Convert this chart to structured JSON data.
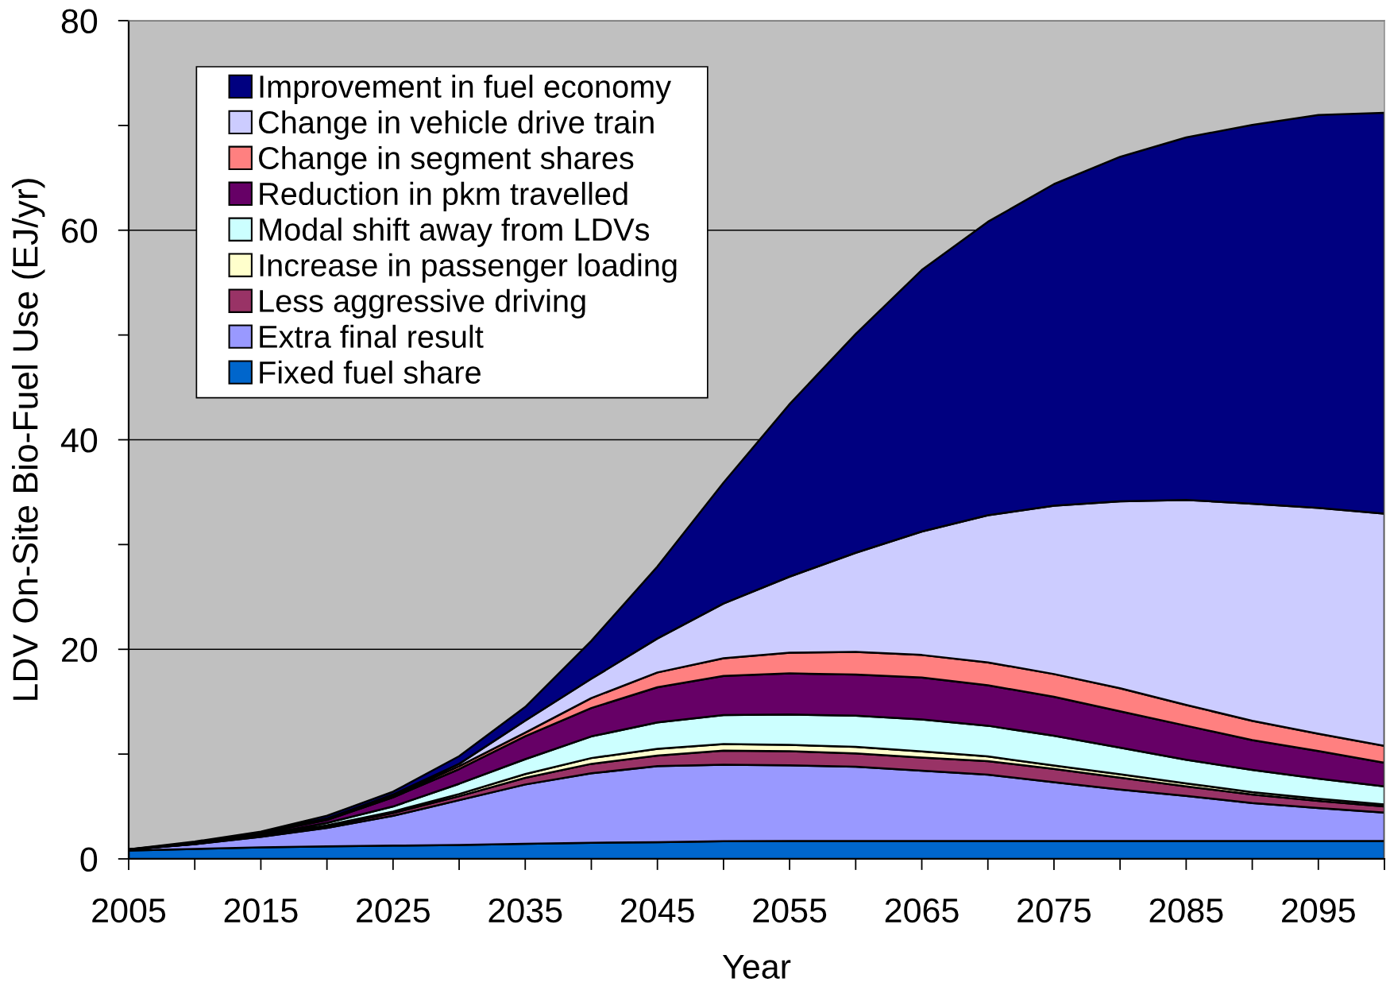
{
  "chart_data": {
    "type": "area",
    "stacked": true,
    "xlabel": "Year",
    "ylabel": "LDV On-Site Bio-Fuel Use (EJ/yr)",
    "x": [
      2005,
      2010,
      2015,
      2020,
      2025,
      2030,
      2035,
      2040,
      2045,
      2050,
      2055,
      2060,
      2065,
      2070,
      2075,
      2080,
      2085,
      2090,
      2095,
      2100
    ],
    "xlim": [
      2005,
      2100
    ],
    "xticks": [
      2005,
      {
        "value": 2010,
        "label": null
      },
      2015,
      {
        "value": 2020,
        "label": null
      },
      2025,
      {
        "value": 2030,
        "label": null
      },
      2035,
      {
        "value": 2040,
        "label": null
      },
      2045,
      {
        "value": 2050,
        "label": null
      },
      2055,
      {
        "value": 2060,
        "label": null
      },
      2065,
      {
        "value": 2070,
        "label": null
      },
      2075,
      {
        "value": 2080,
        "label": null
      },
      2085,
      {
        "value": 2090,
        "label": null
      },
      2095,
      {
        "value": 2100,
        "label": null
      }
    ],
    "ylim": [
      0,
      80
    ],
    "yticks": [
      0,
      {
        "value": 10,
        "label": null
      },
      20,
      {
        "value": 30,
        "label": null
      },
      40,
      {
        "value": 50,
        "label": null
      },
      60,
      {
        "value": 70,
        "label": null
      },
      80
    ],
    "grid": "y",
    "legend": "top left",
    "series": [
      {
        "name": "Fixed fuel share",
        "color": "#0066cc",
        "values": [
          0.8,
          0.95,
          1.1,
          1.2,
          1.27,
          1.32,
          1.45,
          1.54,
          1.6,
          1.68,
          1.7,
          1.7,
          1.7,
          1.7,
          1.7,
          1.7,
          1.7,
          1.7,
          1.7,
          1.7
        ]
      },
      {
        "name": "Extra final result",
        "color": "#9999ff",
        "values": [
          0.1,
          0.45,
          1.0,
          1.75,
          2.84,
          4.28,
          5.65,
          6.63,
          7.25,
          7.3,
          7.23,
          7.09,
          6.71,
          6.33,
          5.61,
          4.92,
          4.31,
          3.62,
          3.16,
          2.71
        ]
      },
      {
        "name": "Less aggressive driving",
        "color": "#993366",
        "values": [
          0,
          0.02,
          0.08,
          0.16,
          0.27,
          0.38,
          0.64,
          0.9,
          1.01,
          1.36,
          1.35,
          1.28,
          1.25,
          1.3,
          1.27,
          1.13,
          0.91,
          0.83,
          0.68,
          0.59
        ]
      },
      {
        "name": "Increase in passenger loading",
        "color": "#ffffcc",
        "values": [
          0,
          0.01,
          0.03,
          0.1,
          0.14,
          0.21,
          0.36,
          0.55,
          0.65,
          0.62,
          0.6,
          0.62,
          0.6,
          0.45,
          0.33,
          0.33,
          0.28,
          0.22,
          0.2,
          0.19
        ]
      },
      {
        "name": "Modal shift away from LDVs",
        "color": "#ccffff",
        "values": [
          0,
          0.03,
          0.09,
          0.22,
          0.48,
          0.98,
          1.42,
          2.07,
          2.51,
          2.76,
          2.9,
          2.98,
          3.05,
          2.93,
          2.84,
          2.53,
          2.26,
          2.12,
          1.92,
          1.73
        ]
      },
      {
        "name": "Reduction in pkm travelled",
        "color": "#660066",
        "values": [
          0,
          0.06,
          0.15,
          0.28,
          0.87,
          1.4,
          2.18,
          2.71,
          3.36,
          3.74,
          3.92,
          3.93,
          3.99,
          3.86,
          3.72,
          3.48,
          3.25,
          2.84,
          2.63,
          2.26
        ]
      },
      {
        "name": "Change in segment shares",
        "color": "#ff8080",
        "values": [
          0,
          0.01,
          0.03,
          0.1,
          0.13,
          0.28,
          0.35,
          0.95,
          1.41,
          1.68,
          1.98,
          2.16,
          2.16,
          2.18,
          2.17,
          2.2,
          1.98,
          1.85,
          1.65,
          1.6
        ]
      },
      {
        "name": "Change in vehicle drive train",
        "color": "#ccccff",
        "values": [
          0,
          0.02,
          0.04,
          0.05,
          0.14,
          0.22,
          1.15,
          1.84,
          3.24,
          5.23,
          7.26,
          9.45,
          11.78,
          14.05,
          16.06,
          17.83,
          19.57,
          20.72,
          21.55,
          22.16
        ]
      },
      {
        "name": "Improvement in fuel economy",
        "color": "#000080",
        "values": [
          0,
          0.1,
          0.08,
          0.25,
          0.27,
          0.73,
          1.3,
          3.61,
          6.87,
          11.53,
          16.46,
          20.89,
          24.96,
          28.0,
          30.7,
          32.88,
          34.59,
          36.15,
          37.51,
          38.26
        ]
      }
    ]
  }
}
